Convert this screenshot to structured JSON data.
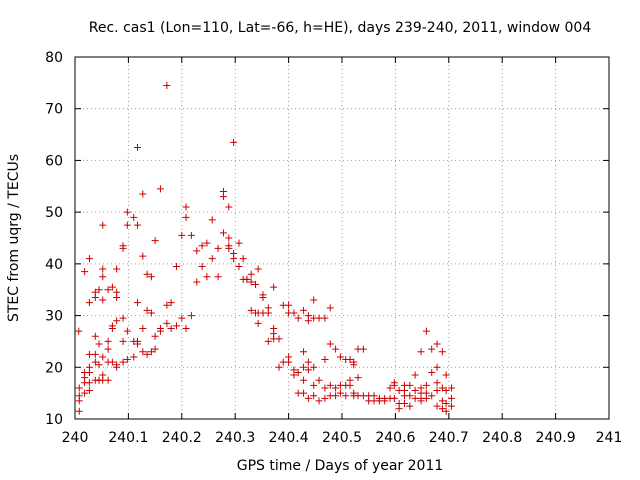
{
  "chart_data": {
    "type": "scatter",
    "title": "Rec. cas1 (Lon=110, Lat=-66, h=HE), days 239-240, 2011, window 004",
    "xlabel": "GPS time / Days of year 2011",
    "ylabel": "STEC from uqrg / TECUs",
    "xlim": [
      240,
      241
    ],
    "ylim": [
      10,
      80
    ],
    "xticks": [
      "240",
      "240.1",
      "240.2",
      "240.3",
      "240.4",
      "240.5",
      "240.6",
      "240.7",
      "240.8",
      "240.9",
      "241"
    ],
    "yticks": [
      "10",
      "20",
      "30",
      "40",
      "50",
      "60",
      "70",
      "80"
    ],
    "grid": true,
    "legend": "none",
    "marker": "plus",
    "color": "#cc0000",
    "points": [
      [
        240.007,
        27.0
      ],
      [
        240.008,
        16.0
      ],
      [
        240.008,
        14.5
      ],
      [
        240.008,
        13.5
      ],
      [
        240.008,
        11.5
      ],
      [
        240.018,
        38.5
      ],
      [
        240.018,
        19.0
      ],
      [
        240.018,
        18.0
      ],
      [
        240.018,
        17.0
      ],
      [
        240.018,
        15.0
      ],
      [
        240.027,
        41.0
      ],
      [
        240.027,
        32.5
      ],
      [
        240.027,
        22.5
      ],
      [
        240.027,
        20.0
      ],
      [
        240.027,
        19.0
      ],
      [
        240.027,
        17.0
      ],
      [
        240.027,
        15.5
      ],
      [
        240.038,
        34.5
      ],
      [
        240.038,
        33.5
      ],
      [
        240.038,
        26.0
      ],
      [
        240.038,
        22.5
      ],
      [
        240.038,
        21.0
      ],
      [
        240.038,
        17.5
      ],
      [
        240.045,
        35.0
      ],
      [
        240.045,
        24.5
      ],
      [
        240.045,
        20.5
      ],
      [
        240.045,
        17.5
      ],
      [
        240.045,
        17.5
      ],
      [
        240.052,
        47.5
      ],
      [
        240.052,
        39.0
      ],
      [
        240.052,
        37.5
      ],
      [
        240.052,
        33.0
      ],
      [
        240.052,
        22.0
      ],
      [
        240.052,
        18.5
      ],
      [
        240.052,
        17.5
      ],
      [
        240.062,
        35.0
      ],
      [
        240.062,
        25.0
      ],
      [
        240.062,
        23.5
      ],
      [
        240.062,
        21.0
      ],
      [
        240.062,
        17.5
      ],
      [
        240.07,
        35.5
      ],
      [
        240.07,
        28.0
      ],
      [
        240.07,
        27.5
      ],
      [
        240.07,
        21.0
      ],
      [
        240.078,
        39.0
      ],
      [
        240.078,
        34.5
      ],
      [
        240.078,
        33.5
      ],
      [
        240.078,
        29.0
      ],
      [
        240.078,
        20.5
      ],
      [
        240.078,
        20.0
      ],
      [
        240.09,
        43.5
      ],
      [
        240.09,
        43.0
      ],
      [
        240.09,
        29.5
      ],
      [
        240.09,
        25.0
      ],
      [
        240.09,
        21.0
      ],
      [
        240.098,
        50.0
      ],
      [
        240.098,
        47.5
      ],
      [
        240.098,
        27.0
      ],
      [
        240.098,
        21.5
      ],
      [
        240.11,
        49.0
      ],
      [
        240.11,
        25.0
      ],
      [
        240.11,
        22.0
      ],
      [
        240.117,
        62.5
      ],
      [
        240.117,
        47.5
      ],
      [
        240.117,
        32.5
      ],
      [
        240.117,
        25.0
      ],
      [
        240.117,
        24.5
      ],
      [
        240.127,
        53.5
      ],
      [
        240.127,
        41.5
      ],
      [
        240.127,
        27.5
      ],
      [
        240.127,
        23.0
      ],
      [
        240.135,
        38.0
      ],
      [
        240.135,
        31.0
      ],
      [
        240.135,
        22.5
      ],
      [
        240.143,
        37.5
      ],
      [
        240.143,
        30.5
      ],
      [
        240.143,
        23.0
      ],
      [
        240.15,
        44.5
      ],
      [
        240.15,
        26.0
      ],
      [
        240.15,
        23.5
      ],
      [
        240.16,
        54.5
      ],
      [
        240.16,
        27.5
      ],
      [
        240.16,
        27.0
      ],
      [
        240.172,
        74.5
      ],
      [
        240.172,
        32.0
      ],
      [
        240.172,
        28.5
      ],
      [
        240.18,
        32.5
      ],
      [
        240.18,
        27.5
      ],
      [
        240.19,
        39.5
      ],
      [
        240.19,
        28.0
      ],
      [
        240.2,
        45.5
      ],
      [
        240.2,
        29.5
      ],
      [
        240.208,
        51.0
      ],
      [
        240.208,
        49.0
      ],
      [
        240.208,
        27.5
      ],
      [
        240.218,
        45.5
      ],
      [
        240.218,
        30.0
      ],
      [
        240.228,
        42.5
      ],
      [
        240.228,
        36.5
      ],
      [
        240.238,
        43.5
      ],
      [
        240.238,
        39.5
      ],
      [
        240.247,
        44.0
      ],
      [
        240.247,
        37.5
      ],
      [
        240.257,
        48.5
      ],
      [
        240.257,
        41.0
      ],
      [
        240.268,
        43.0
      ],
      [
        240.268,
        37.5
      ],
      [
        240.278,
        54.0
      ],
      [
        240.278,
        53.0
      ],
      [
        240.278,
        46.0
      ],
      [
        240.288,
        51.0
      ],
      [
        240.288,
        45.0
      ],
      [
        240.288,
        43.5
      ],
      [
        240.288,
        43.0
      ],
      [
        240.297,
        63.5
      ],
      [
        240.297,
        42.0
      ],
      [
        240.297,
        41.0
      ],
      [
        240.307,
        44.0
      ],
      [
        240.307,
        39.5
      ],
      [
        240.315,
        41.0
      ],
      [
        240.315,
        37.0
      ],
      [
        240.322,
        37.0
      ],
      [
        240.322,
        37.0
      ],
      [
        240.33,
        38.0
      ],
      [
        240.33,
        36.5
      ],
      [
        240.33,
        31.0
      ],
      [
        240.338,
        36.0
      ],
      [
        240.338,
        30.5
      ],
      [
        240.343,
        39.0
      ],
      [
        240.343,
        30.5
      ],
      [
        240.343,
        28.5
      ],
      [
        240.352,
        34.0
      ],
      [
        240.352,
        33.5
      ],
      [
        240.352,
        30.5
      ],
      [
        240.362,
        31.5
      ],
      [
        240.362,
        30.5
      ],
      [
        240.362,
        25.0
      ],
      [
        240.372,
        35.5
      ],
      [
        240.372,
        27.5
      ],
      [
        240.372,
        26.5
      ],
      [
        240.372,
        25.5
      ],
      [
        240.382,
        25.5
      ],
      [
        240.382,
        20.0
      ],
      [
        240.39,
        32.0
      ],
      [
        240.39,
        21.0
      ],
      [
        240.4,
        32.0
      ],
      [
        240.4,
        30.5
      ],
      [
        240.4,
        22.0
      ],
      [
        240.4,
        21.0
      ],
      [
        240.41,
        30.5
      ],
      [
        240.41,
        19.5
      ],
      [
        240.41,
        18.5
      ],
      [
        240.418,
        29.5
      ],
      [
        240.418,
        19.0
      ],
      [
        240.418,
        15.0
      ],
      [
        240.428,
        31.0
      ],
      [
        240.428,
        23.0
      ],
      [
        240.428,
        20.0
      ],
      [
        240.428,
        17.5
      ],
      [
        240.428,
        15.0
      ],
      [
        240.437,
        30.0
      ],
      [
        240.437,
        29.0
      ],
      [
        240.437,
        21.0
      ],
      [
        240.437,
        19.5
      ],
      [
        240.437,
        14.0
      ],
      [
        240.447,
        33.0
      ],
      [
        240.447,
        29.5
      ],
      [
        240.447,
        20.0
      ],
      [
        240.447,
        16.5
      ],
      [
        240.447,
        14.5
      ],
      [
        240.457,
        29.5
      ],
      [
        240.457,
        17.5
      ],
      [
        240.457,
        13.5
      ],
      [
        240.468,
        29.5
      ],
      [
        240.468,
        21.5
      ],
      [
        240.468,
        16.0
      ],
      [
        240.468,
        14.0
      ],
      [
        240.478,
        31.5
      ],
      [
        240.478,
        24.5
      ],
      [
        240.478,
        16.5
      ],
      [
        240.478,
        14.5
      ],
      [
        240.488,
        23.5
      ],
      [
        240.488,
        16.0
      ],
      [
        240.488,
        14.5
      ],
      [
        240.497,
        22.0
      ],
      [
        240.497,
        16.5
      ],
      [
        240.497,
        15.0
      ],
      [
        240.507,
        21.5
      ],
      [
        240.507,
        16.5
      ],
      [
        240.507,
        14.5
      ],
      [
        240.515,
        21.5
      ],
      [
        240.515,
        17.5
      ],
      [
        240.515,
        16.5
      ],
      [
        240.522,
        21.0
      ],
      [
        240.522,
        20.5
      ],
      [
        240.522,
        15.0
      ],
      [
        240.522,
        14.5
      ],
      [
        240.53,
        23.5
      ],
      [
        240.53,
        18.0
      ],
      [
        240.53,
        14.5
      ],
      [
        240.54,
        23.5
      ],
      [
        240.54,
        14.5
      ],
      [
        240.55,
        14.5
      ],
      [
        240.55,
        13.5
      ],
      [
        240.56,
        14.5
      ],
      [
        240.56,
        13.5
      ],
      [
        240.57,
        14.0
      ],
      [
        240.57,
        13.5
      ],
      [
        240.58,
        14.0
      ],
      [
        240.58,
        13.5
      ],
      [
        240.59,
        16.0
      ],
      [
        240.59,
        14.0
      ],
      [
        240.598,
        17.0
      ],
      [
        240.598,
        16.5
      ],
      [
        240.598,
        14.0
      ],
      [
        240.607,
        15.5
      ],
      [
        240.607,
        13.0
      ],
      [
        240.607,
        12.0
      ],
      [
        240.617,
        16.5
      ],
      [
        240.617,
        15.5
      ],
      [
        240.617,
        14.5
      ],
      [
        240.617,
        13.0
      ],
      [
        240.627,
        16.5
      ],
      [
        240.627,
        14.5
      ],
      [
        240.627,
        12.5
      ],
      [
        240.637,
        18.5
      ],
      [
        240.637,
        15.5
      ],
      [
        240.637,
        14.0
      ],
      [
        240.648,
        23.0
      ],
      [
        240.648,
        16.0
      ],
      [
        240.648,
        15.0
      ],
      [
        240.648,
        14.0
      ],
      [
        240.648,
        13.5
      ],
      [
        240.658,
        27.0
      ],
      [
        240.658,
        16.5
      ],
      [
        240.658,
        15.0
      ],
      [
        240.658,
        14.0
      ],
      [
        240.668,
        23.5
      ],
      [
        240.668,
        19.0
      ],
      [
        240.668,
        14.5
      ],
      [
        240.678,
        24.5
      ],
      [
        240.678,
        20.0
      ],
      [
        240.678,
        17.0
      ],
      [
        240.678,
        15.5
      ],
      [
        240.678,
        12.5
      ],
      [
        240.688,
        23.0
      ],
      [
        240.688,
        16.0
      ],
      [
        240.688,
        13.5
      ],
      [
        240.688,
        12.0
      ],
      [
        240.695,
        18.5
      ],
      [
        240.695,
        15.5
      ],
      [
        240.695,
        13.0
      ],
      [
        240.695,
        11.5
      ],
      [
        240.705,
        16.0
      ],
      [
        240.705,
        14.0
      ],
      [
        240.705,
        12.5
      ]
    ]
  }
}
